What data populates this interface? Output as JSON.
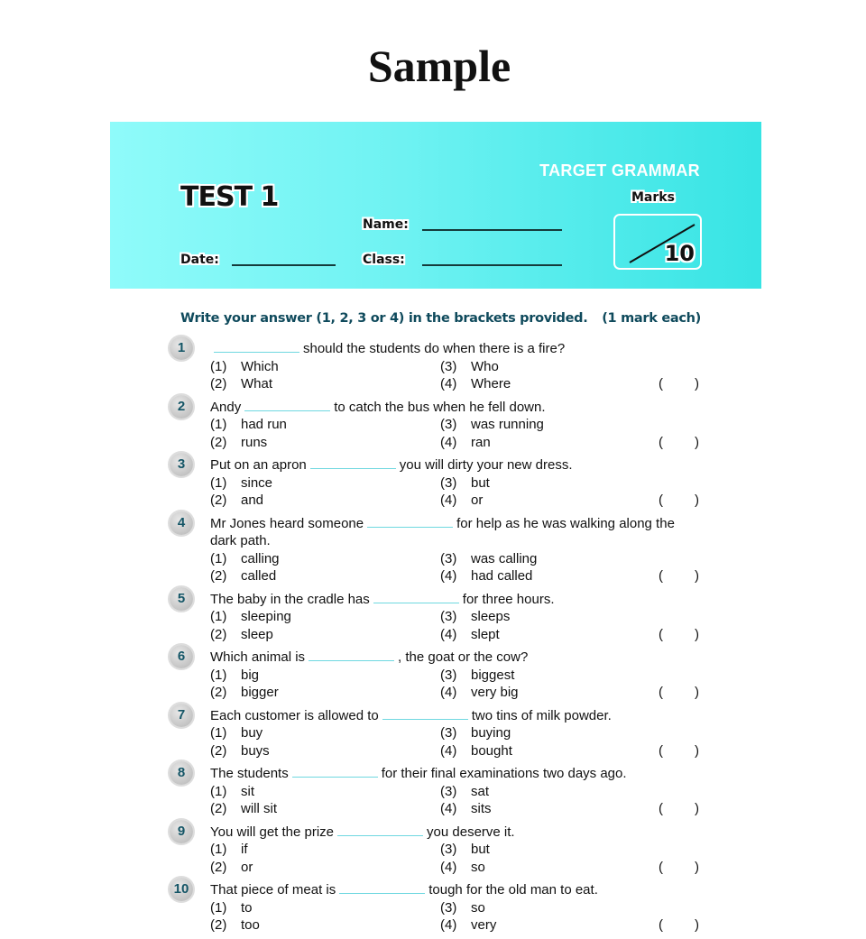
{
  "watermark": "Sample",
  "header": {
    "brand": "TARGET GRAMMAR",
    "test_title": "TEST 1",
    "name_label": "Name:",
    "date_label": "Date:",
    "class_label": "Class:",
    "marks_label": "Marks",
    "marks_total": "10",
    "accent": "#37e4e4"
  },
  "instructions": {
    "text": "Write your answer (1, 2, 3 or 4) in the brackets provided.",
    "marks": "(1 mark each)"
  },
  "bracket": {
    "open": "(",
    "close": ")"
  },
  "questions": [
    {
      "num": "1",
      "before": "",
      "after": "should the students do when there is a fire?",
      "options": [
        "Which",
        "What",
        "Who",
        "Where"
      ]
    },
    {
      "num": "2",
      "before": "Andy",
      "after": "to catch the bus when he fell down.",
      "options": [
        "had run",
        "runs",
        "was running",
        "ran"
      ]
    },
    {
      "num": "3",
      "before": "Put on an apron",
      "after": "you will dirty your new dress.",
      "options": [
        "since",
        "and",
        "but",
        "or"
      ]
    },
    {
      "num": "4",
      "before": "Mr Jones heard someone",
      "after": "for help as he was walking along the dark path.",
      "options": [
        "calling",
        "called",
        "was calling",
        "had called"
      ]
    },
    {
      "num": "5",
      "before": "The baby in the cradle has",
      "after": "for three hours.",
      "options": [
        "sleeping",
        "sleep",
        "sleeps",
        "slept"
      ]
    },
    {
      "num": "6",
      "before": "Which animal is",
      "after": ", the goat or the cow?",
      "options": [
        "big",
        "bigger",
        "biggest",
        "very big"
      ]
    },
    {
      "num": "7",
      "before": "Each customer is allowed to",
      "after": "two tins of milk powder.",
      "options": [
        "buy",
        "buys",
        "buying",
        "bought"
      ]
    },
    {
      "num": "8",
      "before": "The students",
      "after": "for their final examinations two days ago.",
      "options": [
        "sit",
        "will sit",
        "sat",
        "sits"
      ]
    },
    {
      "num": "9",
      "before": "You will get the prize",
      "after": "you deserve it.",
      "options": [
        "if",
        "or",
        "but",
        "so"
      ]
    },
    {
      "num": "10",
      "before": "That piece of meat is",
      "after": "tough for the old man to eat.",
      "options": [
        "to",
        "too",
        "so",
        "very"
      ]
    }
  ],
  "option_numbers": [
    "(1)",
    "(2)",
    "(3)",
    "(4)"
  ]
}
